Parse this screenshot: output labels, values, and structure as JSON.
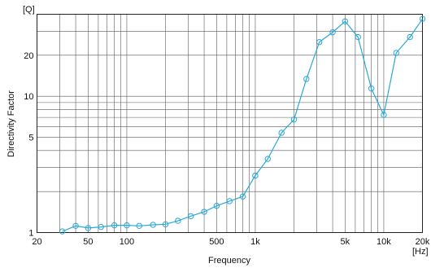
{
  "chart_data": {
    "type": "line",
    "xscale": "log",
    "yscale": "log",
    "title": "",
    "xlabel": "Frequency",
    "ylabel": "Directivity Factor",
    "x_unit_label": "[Hz]",
    "y_unit_label": "[Q]",
    "xlim": [
      20,
      20000
    ],
    "ylim": [
      1,
      40
    ],
    "x_ticks": [
      {
        "value": 20,
        "label": "20"
      },
      {
        "value": 50,
        "label": "50"
      },
      {
        "value": 100,
        "label": "100"
      },
      {
        "value": 500,
        "label": "500"
      },
      {
        "value": 1000,
        "label": "1k"
      },
      {
        "value": 5000,
        "label": "5k"
      },
      {
        "value": 10000,
        "label": "10k"
      },
      {
        "value": 20000,
        "label": "20k"
      }
    ],
    "y_ticks": [
      {
        "value": 1,
        "label": "1"
      },
      {
        "value": 5,
        "label": "5"
      },
      {
        "value": 10,
        "label": "10"
      },
      {
        "value": 20,
        "label": "20"
      }
    ],
    "grid": true,
    "line_color": "#29a8d8",
    "series": [
      {
        "x": [
          31.5,
          40,
          50,
          63,
          80,
          100,
          125,
          160,
          200,
          250,
          315,
          400,
          500,
          630,
          800,
          1000,
          1250,
          1600,
          2000,
          2500,
          3150,
          4000,
          5000,
          6300,
          8000,
          10000,
          12500,
          16000,
          20000
        ],
        "y": [
          1.02,
          1.12,
          1.08,
          1.1,
          1.13,
          1.13,
          1.12,
          1.14,
          1.15,
          1.22,
          1.32,
          1.42,
          1.57,
          1.7,
          1.84,
          2.62,
          3.47,
          5.4,
          6.75,
          13.4,
          25.0,
          29.5,
          35.5,
          27.2,
          11.4,
          7.3,
          20.8,
          27.2,
          37.0
        ]
      }
    ]
  }
}
